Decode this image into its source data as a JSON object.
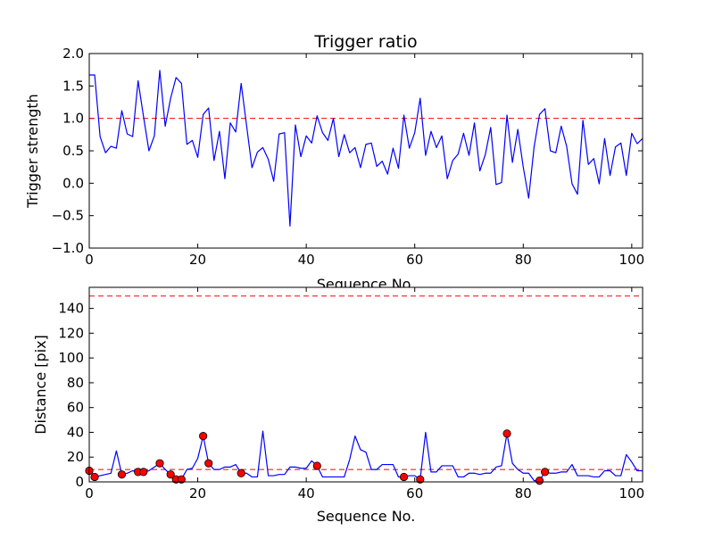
{
  "chart_data": [
    {
      "type": "line",
      "title": "Trigger ratio",
      "xlabel": "Sequence No.",
      "ylabel": "Trigger strength",
      "xlim": [
        0,
        102
      ],
      "ylim": [
        -1.0,
        2.0
      ],
      "xticks": [
        0,
        20,
        40,
        60,
        80,
        100
      ],
      "yticks": [
        -1.0,
        -0.5,
        0.0,
        0.5,
        1.0,
        1.5,
        2.0
      ],
      "ytick_labels": [
        "−1.0",
        "−0.5",
        "0.0",
        "0.5",
        "1.0",
        "1.5",
        "2.0"
      ],
      "grid": false,
      "threshold": {
        "value": 1.0,
        "color": "#ff0000",
        "style": "dashed"
      },
      "series": [
        {
          "color": "#0000ff",
          "x": [
            0,
            1,
            2,
            3,
            4,
            5,
            6,
            7,
            8,
            9,
            10,
            11,
            12,
            13,
            14,
            15,
            16,
            17,
            18,
            19,
            20,
            21,
            22,
            23,
            24,
            25,
            26,
            27,
            28,
            29,
            30,
            31,
            32,
            33,
            34,
            35,
            36,
            37,
            38,
            39,
            40,
            41,
            42,
            43,
            44,
            45,
            46,
            47,
            48,
            49,
            50,
            51,
            52,
            53,
            54,
            55,
            56,
            57,
            58,
            59,
            60,
            61,
            62,
            63,
            64,
            65,
            66,
            67,
            68,
            69,
            70,
            71,
            72,
            73,
            74,
            75,
            76,
            77,
            78,
            79,
            80,
            81,
            82,
            83,
            84,
            85,
            86,
            87,
            88,
            89,
            90,
            91,
            92,
            93,
            94,
            95,
            96,
            97,
            98,
            99,
            100,
            101,
            102
          ],
          "y": [
            1.67,
            1.67,
            0.72,
            0.47,
            0.57,
            0.54,
            1.12,
            0.76,
            0.72,
            1.58,
            1.03,
            0.5,
            0.73,
            1.74,
            0.88,
            1.31,
            1.63,
            1.54,
            0.6,
            0.66,
            0.4,
            1.06,
            1.16,
            0.35,
            0.8,
            0.07,
            0.93,
            0.79,
            1.54,
            0.89,
            0.24,
            0.48,
            0.55,
            0.37,
            0.03,
            0.76,
            0.78,
            -0.66,
            0.9,
            0.41,
            0.73,
            0.62,
            1.04,
            0.78,
            0.66,
            1.0,
            0.41,
            0.75,
            0.47,
            0.55,
            0.24,
            0.6,
            0.62,
            0.26,
            0.34,
            0.14,
            0.54,
            0.23,
            1.05,
            0.54,
            0.78,
            1.31,
            0.43,
            0.8,
            0.55,
            0.73,
            0.07,
            0.35,
            0.45,
            0.77,
            0.43,
            0.93,
            0.19,
            0.44,
            0.86,
            -0.02,
            0.01,
            1.05,
            0.32,
            0.83,
            0.25,
            -0.23,
            0.56,
            1.06,
            1.15,
            0.5,
            0.47,
            0.88,
            0.57,
            -0.01,
            -0.17,
            0.97,
            0.29,
            0.38,
            -0.01,
            0.69,
            0.12,
            0.56,
            0.62,
            0.12,
            0.77,
            0.61,
            0.69
          ]
        }
      ]
    },
    {
      "type": "line",
      "title": "",
      "xlabel": "Sequence No.",
      "ylabel": "Distance [pix]",
      "xlim": [
        0,
        102
      ],
      "ylim": [
        0,
        157
      ],
      "xticks": [
        0,
        20,
        40,
        60,
        80,
        100
      ],
      "yticks": [
        0,
        20,
        40,
        60,
        80,
        100,
        120,
        140
      ],
      "ytick_labels": [
        "0",
        "20",
        "40",
        "60",
        "80",
        "100",
        "120",
        "140"
      ],
      "grid": false,
      "thresholds": [
        {
          "value": 150,
          "color": "#ff0000",
          "style": "dashed"
        },
        {
          "value": 10,
          "color": "#ff0000",
          "style": "dashed"
        }
      ],
      "series": [
        {
          "color": "#0000ff",
          "x": [
            0,
            1,
            2,
            3,
            4,
            5,
            6,
            7,
            8,
            9,
            10,
            11,
            12,
            13,
            14,
            15,
            16,
            17,
            18,
            19,
            20,
            21,
            22,
            23,
            24,
            25,
            26,
            27,
            28,
            29,
            30,
            31,
            32,
            33,
            34,
            35,
            36,
            37,
            38,
            39,
            40,
            41,
            42,
            43,
            44,
            45,
            46,
            47,
            48,
            49,
            50,
            51,
            52,
            53,
            54,
            55,
            56,
            57,
            58,
            59,
            60,
            61,
            62,
            63,
            64,
            65,
            66,
            67,
            68,
            69,
            70,
            71,
            72,
            73,
            74,
            75,
            76,
            77,
            78,
            79,
            80,
            81,
            82,
            83,
            84,
            85,
            86,
            87,
            88,
            89,
            90,
            91,
            92,
            93,
            94,
            95,
            96,
            97,
            98,
            99,
            100,
            101,
            102
          ],
          "y": [
            9,
            4,
            5,
            6,
            7,
            25,
            6,
            7,
            9,
            8,
            8,
            9,
            12,
            15,
            10,
            6,
            2,
            2,
            10,
            11,
            19,
            37,
            15,
            10,
            10,
            12,
            12,
            14,
            7,
            7,
            4,
            4,
            41,
            5,
            5,
            6,
            6,
            12,
            12,
            11,
            11,
            17,
            13,
            4,
            4,
            4,
            4,
            4,
            18,
            37,
            26,
            24,
            10,
            10,
            14,
            14,
            14,
            4,
            4,
            5,
            5,
            2,
            40,
            8,
            8,
            13,
            13,
            13,
            4,
            4,
            7,
            7,
            6,
            7,
            7,
            12,
            13,
            39,
            15,
            10,
            7,
            7,
            1,
            1,
            8,
            7,
            7,
            8,
            8,
            14,
            5,
            5,
            5,
            4,
            4,
            9,
            9,
            5,
            5,
            22,
            16,
            9,
            9
          ]
        },
        {
          "color": "#ff0000",
          "marker": "circle",
          "x": [
            0,
            1,
            6,
            9,
            10,
            13,
            15,
            16,
            17,
            21,
            22,
            28,
            42,
            58,
            61,
            77,
            83,
            84
          ],
          "y": [
            9,
            4,
            6,
            8,
            8,
            15,
            6,
            2,
            2,
            37,
            15,
            7,
            13,
            4,
            2,
            39,
            1,
            8
          ]
        }
      ]
    }
  ]
}
